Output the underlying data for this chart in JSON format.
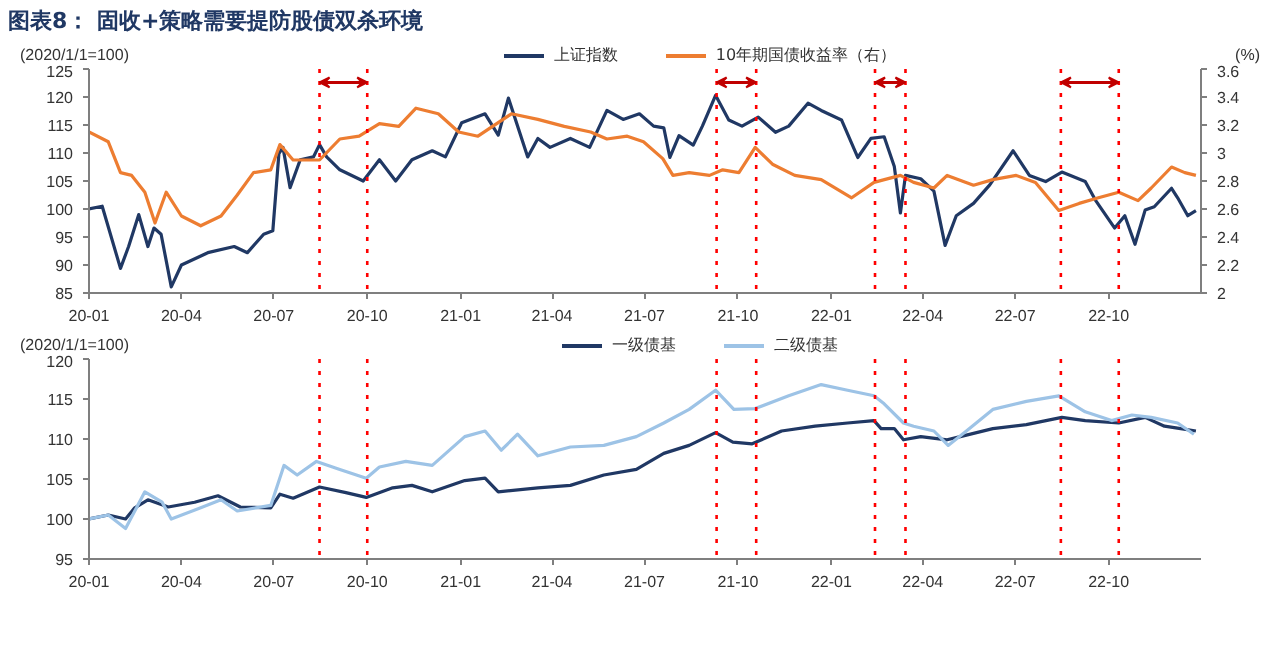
{
  "chart_data": [
    {
      "type": "line",
      "title": "图表8： 固收+策略需要提防股债双杀环境",
      "ylabel": "(2020/1/1=100)",
      "y2label": "(%)",
      "legend": "top",
      "xlim": [
        "2020-01-01",
        "2022-12-31"
      ],
      "xticks": [
        {
          "value": "2020-01-01",
          "label": "20-01"
        },
        {
          "value": "2020-04-01",
          "label": "20-04"
        },
        {
          "value": "2020-07-01",
          "label": "20-07"
        },
        {
          "value": "2020-10-01",
          "label": "20-10"
        },
        {
          "value": "2021-01-01",
          "label": "21-01"
        },
        {
          "value": "2021-04-01",
          "label": "21-04"
        },
        {
          "value": "2021-07-01",
          "label": "21-07"
        },
        {
          "value": "2021-10-01",
          "label": "21-10"
        },
        {
          "value": "2022-01-01",
          "label": "22-01"
        },
        {
          "value": "2022-04-01",
          "label": "22-04"
        },
        {
          "value": "2022-07-01",
          "label": "22-07"
        },
        {
          "value": "2022-10-01",
          "label": "22-10"
        }
      ],
      "ylim": [
        85,
        125
      ],
      "yticks": [
        85,
        90,
        95,
        100,
        105,
        110,
        115,
        120,
        125
      ],
      "y2lim": [
        2,
        3.6
      ],
      "y2ticks": [
        2,
        2.2,
        2.4,
        2.6,
        2.8,
        3,
        3.2,
        3.4,
        3.6
      ],
      "series": [
        {
          "name": "上证指数",
          "color": "#203864",
          "x": [
            "2020-01-01",
            "2020-01-14",
            "2020-02-01",
            "2020-02-09",
            "2020-02-19",
            "2020-02-28",
            "2020-03-05",
            "2020-03-12",
            "2020-03-22",
            "2020-04-01",
            "2020-04-27",
            "2020-05-23",
            "2020-06-05",
            "2020-06-21",
            "2020-06-30",
            "2020-07-06",
            "2020-07-10",
            "2020-07-17",
            "2020-07-27",
            "2020-08-09",
            "2020-08-15",
            "2020-08-22",
            "2020-09-04",
            "2020-09-27",
            "2020-10-13",
            "2020-10-29",
            "2020-11-14",
            "2020-12-04",
            "2020-12-17",
            "2021-01-02",
            "2021-01-25",
            "2021-02-07",
            "2021-02-17",
            "2021-03-08",
            "2021-03-18",
            "2021-03-30",
            "2021-04-19",
            "2021-05-08",
            "2021-05-25",
            "2021-06-10",
            "2021-06-26",
            "2021-07-10",
            "2021-07-20",
            "2021-07-26",
            "2021-08-04",
            "2021-08-18",
            "2021-08-27",
            "2021-09-09",
            "2021-09-22",
            "2021-10-05",
            "2021-10-21",
            "2021-11-07",
            "2021-11-20",
            "2021-12-09",
            "2021-12-22",
            "2022-01-11",
            "2022-01-27",
            "2022-02-09",
            "2022-02-22",
            "2022-03-04",
            "2022-03-10",
            "2022-03-15",
            "2022-03-30",
            "2022-04-12",
            "2022-04-23",
            "2022-05-04",
            "2022-05-21",
            "2022-06-06",
            "2022-06-29",
            "2022-07-15",
            "2022-07-31",
            "2022-08-16",
            "2022-09-08",
            "2022-09-18",
            "2022-10-07",
            "2022-10-17",
            "2022-10-27",
            "2022-11-06",
            "2022-11-15",
            "2022-12-02",
            "2022-12-08",
            "2022-12-18",
            "2022-12-26"
          ],
          "values": [
            100,
            100.5,
            89.4,
            93.3,
            99,
            93.3,
            96.6,
            95.5,
            86.1,
            90,
            92.2,
            93.3,
            92.2,
            95.5,
            96.1,
            109.9,
            111,
            103.8,
            108.8,
            109.3,
            111.5,
            109.3,
            107,
            105,
            108.8,
            105,
            108.8,
            110.4,
            109.3,
            115.4,
            117,
            113.2,
            119.8,
            109.3,
            112.6,
            111,
            112.6,
            111,
            117.6,
            116,
            117,
            114.8,
            114.5,
            109.2,
            113.1,
            111.4,
            114.8,
            120.3,
            115.9,
            114.8,
            116.4,
            113.7,
            114.8,
            118.9,
            117.6,
            115.9,
            109.2,
            112.6,
            112.9,
            107.6,
            99.3,
            106,
            105.4,
            103.2,
            93.5,
            98.8,
            101,
            104.3,
            110.4,
            106,
            104.9,
            106.6,
            104.9,
            101.6,
            96.6,
            98.8,
            93.7,
            99.8,
            100.4,
            103.7,
            102,
            98.8,
            99.7
          ]
        },
        {
          "name": "10年期国债收益率（右）",
          "color": "#ed7d31",
          "axis": "y2",
          "x": [
            "2020-01-01",
            "2020-01-20",
            "2020-02-01",
            "2020-02-12",
            "2020-02-25",
            "2020-03-06",
            "2020-03-17",
            "2020-04-01",
            "2020-04-20",
            "2020-05-10",
            "2020-05-26",
            "2020-06-11",
            "2020-06-28",
            "2020-07-07",
            "2020-07-20",
            "2020-08-15",
            "2020-09-04",
            "2020-09-23",
            "2020-10-13",
            "2020-11-01",
            "2020-11-18",
            "2020-12-10",
            "2020-12-30",
            "2021-01-18",
            "2021-02-20",
            "2021-03-18",
            "2021-04-13",
            "2021-05-09",
            "2021-05-25",
            "2021-06-14",
            "2021-06-30",
            "2021-07-19",
            "2021-07-29",
            "2021-08-14",
            "2021-09-03",
            "2021-09-16",
            "2021-10-02",
            "2021-10-18",
            "2021-11-04",
            "2021-11-26",
            "2021-12-22",
            "2022-01-21",
            "2022-02-12",
            "2022-03-10",
            "2022-03-23",
            "2022-04-12",
            "2022-04-25",
            "2022-05-21",
            "2022-06-09",
            "2022-07-02",
            "2022-07-21",
            "2022-08-13",
            "2022-09-02",
            "2022-09-21",
            "2022-10-11",
            "2022-10-30",
            "2022-11-12",
            "2022-12-02",
            "2022-12-15",
            "2022-12-26"
          ],
          "values": [
            3.15,
            3.08,
            2.86,
            2.84,
            2.72,
            2.5,
            2.72,
            2.55,
            2.48,
            2.55,
            2.7,
            2.86,
            2.88,
            3.06,
            2.95,
            2.95,
            3.1,
            3.12,
            3.21,
            3.19,
            3.32,
            3.28,
            3.15,
            3.12,
            3.28,
            3.24,
            3.19,
            3.15,
            3.1,
            3.12,
            3.08,
            2.96,
            2.84,
            2.86,
            2.84,
            2.88,
            2.86,
            3.04,
            2.92,
            2.84,
            2.81,
            2.68,
            2.79,
            2.84,
            2.79,
            2.75,
            2.84,
            2.77,
            2.81,
            2.84,
            2.79,
            2.59,
            2.64,
            2.68,
            2.72,
            2.66,
            2.75,
            2.9,
            2.86,
            2.84
          ]
        }
      ],
      "ref_lines": [
        {
          "axis": "x",
          "value": "2020-08-15",
          "color": "#ff0000",
          "line_style": "dotted"
        },
        {
          "axis": "x",
          "value": "2020-10-01",
          "color": "#ff0000",
          "line_style": "dotted"
        },
        {
          "axis": "x",
          "value": "2021-09-10",
          "color": "#ff0000",
          "line_style": "dotted"
        },
        {
          "axis": "x",
          "value": "2021-10-19",
          "color": "#ff0000",
          "line_style": "dotted"
        },
        {
          "axis": "x",
          "value": "2022-02-13",
          "color": "#ff0000",
          "line_style": "dotted"
        },
        {
          "axis": "x",
          "value": "2022-03-15",
          "color": "#ff0000",
          "line_style": "dotted"
        },
        {
          "axis": "x",
          "value": "2022-08-15",
          "color": "#ff0000",
          "line_style": "dotted"
        },
        {
          "axis": "x",
          "value": "2022-10-11",
          "color": "#ff0000",
          "line_style": "dotted"
        }
      ],
      "grid": false
    },
    {
      "type": "line",
      "ylabel": "(2020/1/1=100)",
      "legend": "top",
      "xlim": [
        "2020-01-01",
        "2022-12-31"
      ],
      "xticks": [
        {
          "value": "2020-01-01",
          "label": "20-01"
        },
        {
          "value": "2020-04-01",
          "label": "20-04"
        },
        {
          "value": "2020-07-01",
          "label": "20-07"
        },
        {
          "value": "2020-10-01",
          "label": "20-10"
        },
        {
          "value": "2021-01-01",
          "label": "21-01"
        },
        {
          "value": "2021-04-01",
          "label": "21-04"
        },
        {
          "value": "2021-07-01",
          "label": "21-07"
        },
        {
          "value": "2021-10-01",
          "label": "21-10"
        },
        {
          "value": "2022-01-01",
          "label": "22-01"
        },
        {
          "value": "2022-04-01",
          "label": "22-04"
        },
        {
          "value": "2022-07-01",
          "label": "22-07"
        },
        {
          "value": "2022-10-01",
          "label": "22-10"
        }
      ],
      "ylim": [
        95,
        120
      ],
      "yticks": [
        95,
        100,
        105,
        110,
        115,
        120
      ],
      "series": [
        {
          "name": "一级债基",
          "color": "#203864",
          "x": [
            "2020-01-01",
            "2020-01-20",
            "2020-02-06",
            "2020-02-15",
            "2020-02-28",
            "2020-03-19",
            "2020-04-14",
            "2020-05-07",
            "2020-05-29",
            "2020-06-28",
            "2020-07-07",
            "2020-07-20",
            "2020-08-15",
            "2020-09-10",
            "2020-09-30",
            "2020-10-26",
            "2020-11-14",
            "2020-12-04",
            "2021-01-05",
            "2021-01-25",
            "2021-02-07",
            "2021-03-18",
            "2021-04-19",
            "2021-05-22",
            "2021-06-23",
            "2021-07-20",
            "2021-08-14",
            "2021-09-09",
            "2021-09-26",
            "2021-10-15",
            "2021-11-13",
            "2021-12-16",
            "2022-01-17",
            "2022-02-12",
            "2022-02-19",
            "2022-03-04",
            "2022-03-13",
            "2022-03-30",
            "2022-04-25",
            "2022-05-08",
            "2022-06-09",
            "2022-07-12",
            "2022-08-16",
            "2022-09-08",
            "2022-10-11",
            "2022-11-06",
            "2022-11-25",
            "2022-12-11",
            "2022-12-26"
          ],
          "values": [
            100,
            100.5,
            100,
            101.4,
            102.4,
            101.5,
            102.1,
            102.9,
            101.5,
            101.4,
            103.1,
            102.6,
            104,
            103.3,
            102.7,
            103.9,
            104.2,
            103.4,
            104.8,
            105.1,
            103.4,
            103.9,
            104.2,
            105.5,
            106.2,
            108.2,
            109.2,
            110.8,
            109.6,
            109.4,
            111,
            111.6,
            112,
            112.3,
            111.3,
            111.3,
            109.9,
            110.3,
            109.9,
            110.3,
            111.3,
            111.8,
            112.7,
            112.3,
            112,
            112.7,
            111.6,
            111.3,
            111
          ]
        },
        {
          "name": "二级债基",
          "color": "#9dc3e6",
          "x": [
            "2020-01-01",
            "2020-01-20",
            "2020-02-06",
            "2020-02-25",
            "2020-03-13",
            "2020-03-22",
            "2020-04-20",
            "2020-05-10",
            "2020-05-26",
            "2020-06-28",
            "2020-07-11",
            "2020-07-24",
            "2020-08-12",
            "2020-09-04",
            "2020-09-30",
            "2020-10-13",
            "2020-11-08",
            "2020-12-04",
            "2021-01-05",
            "2021-01-25",
            "2021-02-10",
            "2021-02-26",
            "2021-03-18",
            "2021-04-19",
            "2021-05-22",
            "2021-06-23",
            "2021-07-20",
            "2021-08-14",
            "2021-09-09",
            "2021-09-27",
            "2021-10-18",
            "2021-11-20",
            "2021-12-22",
            "2022-01-17",
            "2022-02-12",
            "2022-02-22",
            "2022-03-13",
            "2022-03-23",
            "2022-04-12",
            "2022-04-26",
            "2022-05-14",
            "2022-06-09",
            "2022-07-12",
            "2022-08-13",
            "2022-09-08",
            "2022-10-04",
            "2022-10-24",
            "2022-11-12",
            "2022-12-08",
            "2022-12-24"
          ],
          "values": [
            100,
            100.5,
            98.8,
            103.4,
            102.1,
            100,
            101.4,
            102.4,
            101,
            101.7,
            106.7,
            105.5,
            107.2,
            106.2,
            105.1,
            106.5,
            107.2,
            106.7,
            110.3,
            111,
            108.6,
            110.6,
            107.9,
            109,
            109.2,
            110.3,
            112,
            113.7,
            116.1,
            113.7,
            113.8,
            115.4,
            116.8,
            116.1,
            115.4,
            114.4,
            112,
            111.6,
            111,
            109.2,
            111,
            113.7,
            114.7,
            115.4,
            113.4,
            112.3,
            113,
            112.7,
            112,
            110.6
          ]
        }
      ],
      "ref_lines": [
        {
          "axis": "x",
          "value": "2020-08-15",
          "color": "#ff0000",
          "line_style": "dotted"
        },
        {
          "axis": "x",
          "value": "2020-10-01",
          "color": "#ff0000",
          "line_style": "dotted"
        },
        {
          "axis": "x",
          "value": "2021-09-10",
          "color": "#ff0000",
          "line_style": "dotted"
        },
        {
          "axis": "x",
          "value": "2021-10-19",
          "color": "#ff0000",
          "line_style": "dotted"
        },
        {
          "axis": "x",
          "value": "2022-02-13",
          "color": "#ff0000",
          "line_style": "dotted"
        },
        {
          "axis": "x",
          "value": "2022-03-15",
          "color": "#ff0000",
          "line_style": "dotted"
        },
        {
          "axis": "x",
          "value": "2022-08-15",
          "color": "#ff0000",
          "line_style": "dotted"
        },
        {
          "axis": "x",
          "value": "2022-10-11",
          "color": "#ff0000",
          "line_style": "dotted"
        }
      ]
    }
  ]
}
